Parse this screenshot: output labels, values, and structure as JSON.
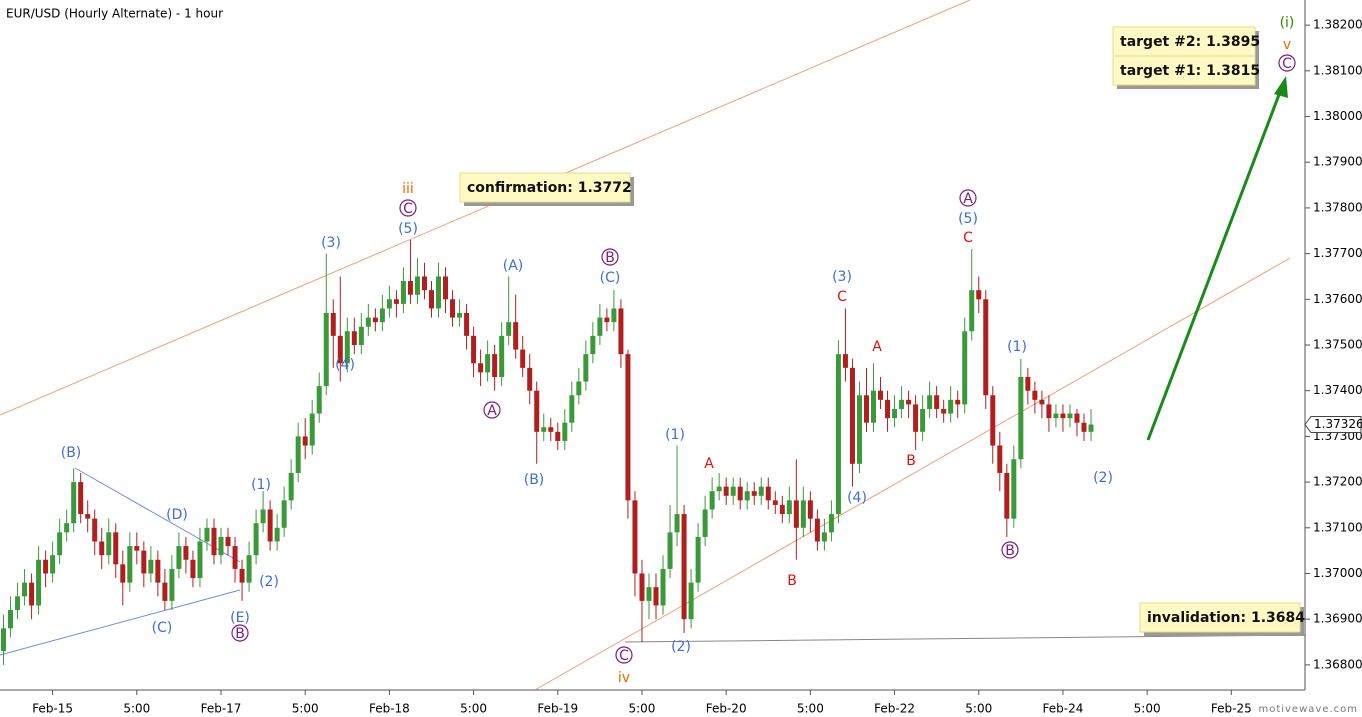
{
  "chart_data": {
    "type": "candlestick",
    "title": "EUR/USD (Hourly Alternate) - 1 hour",
    "watermark": "motivewave.com",
    "up_color": "#3a9a3a",
    "down_color": "#b01e1e",
    "xlim": [
      -0.5,
      185.5
    ],
    "xticks": [
      {
        "value": 7,
        "label": "Feb-15"
      },
      {
        "value": 19,
        "label": "5:00"
      },
      {
        "value": 31,
        "label": "Feb-17"
      },
      {
        "value": 43,
        "label": "5:00"
      },
      {
        "value": 55,
        "label": "Feb-18"
      },
      {
        "value": 67,
        "label": "5:00"
      },
      {
        "value": 79,
        "label": "Feb-19"
      },
      {
        "value": 91,
        "label": "5:00"
      },
      {
        "value": 103,
        "label": "Feb-20"
      },
      {
        "value": 115,
        "label": "5:00"
      },
      {
        "value": 127,
        "label": "Feb-22"
      },
      {
        "value": 139,
        "label": "5:00"
      },
      {
        "value": 151,
        "label": "Feb-24"
      },
      {
        "value": 163,
        "label": "5:00"
      },
      {
        "value": 175,
        "label": "Feb-25"
      }
    ],
    "ylim": [
      1.36745,
      1.38255
    ],
    "yticks": [
      {
        "value": 1.368,
        "label": "1.36800"
      },
      {
        "value": 1.369,
        "label": "1.36900"
      },
      {
        "value": 1.37,
        "label": "1.37000"
      },
      {
        "value": 1.371,
        "label": "1.37100"
      },
      {
        "value": 1.372,
        "label": "1.37200"
      },
      {
        "value": 1.373,
        "label": "1.37300"
      },
      {
        "value": 1.374,
        "label": "1.37400"
      },
      {
        "value": 1.375,
        "label": "1.37500"
      },
      {
        "value": 1.376,
        "label": "1.37600"
      },
      {
        "value": 1.377,
        "label": "1.37700"
      },
      {
        "value": 1.378,
        "label": "1.37800"
      },
      {
        "value": 1.379,
        "label": "1.37900"
      },
      {
        "value": 1.38,
        "label": "1.38000"
      },
      {
        "value": 1.381,
        "label": "1.38100"
      },
      {
        "value": 1.382,
        "label": "1.38200"
      }
    ],
    "last_price_label": "1.37326",
    "open": [
      1.3683,
      1.3688,
      1.3692,
      1.3695,
      1.3698,
      1.3693,
      1.3703,
      1.37,
      1.3704,
      1.3709,
      1.3711,
      1.372,
      1.3713,
      1.3712,
      1.3707,
      1.3704,
      1.3709,
      1.3702,
      1.3698,
      1.3706,
      1.3705,
      1.37,
      1.3703,
      1.3698,
      1.3694,
      1.3701,
      1.3706,
      1.3703,
      1.3699,
      1.3707,
      1.371,
      1.3704,
      1.3708,
      1.3706,
      1.3701,
      1.3698,
      1.3704,
      1.3711,
      1.3714,
      1.3707,
      1.371,
      1.3716,
      1.3722,
      1.373,
      1.3728,
      1.3735,
      1.3741,
      1.3757,
      1.3752,
      1.3746,
      1.3753,
      1.375,
      1.3754,
      1.3756,
      1.3755,
      1.3758,
      1.376,
      1.3759,
      1.3764,
      1.3761,
      1.3765,
      1.3762,
      1.3758,
      1.3765,
      1.376,
      1.3756,
      1.3757,
      1.3752,
      1.3746,
      1.3744,
      1.3748,
      1.3743,
      1.3752,
      1.3755,
      1.3749,
      1.3745,
      1.374,
      1.3731,
      1.3732,
      1.3731,
      1.3729,
      1.3733,
      1.3739,
      1.3742,
      1.3748,
      1.3752,
      1.3756,
      1.3755,
      1.3758,
      1.3748,
      1.3716,
      1.37,
      1.3694,
      1.3697,
      1.3693,
      1.3701,
      1.3709,
      1.3713,
      1.369,
      1.3698,
      1.3708,
      1.3714,
      1.3718,
      1.3719,
      1.3717,
      1.3719,
      1.3716,
      1.3718,
      1.3717,
      1.3719,
      1.3716,
      1.3715,
      1.3713,
      1.3716,
      1.371,
      1.3716,
      1.3712,
      1.3707,
      1.3709,
      1.3713,
      1.3748,
      1.3745,
      1.3724,
      1.3739,
      1.3733,
      1.374,
      1.3738,
      1.3734,
      1.3736,
      1.3738,
      1.3737,
      1.3731,
      1.3736,
      1.3739,
      1.3736,
      1.3735,
      1.3738,
      1.3737,
      1.3753,
      1.3762,
      1.376,
      1.3739,
      1.3728,
      1.3722,
      1.3712,
      1.3725,
      1.3743,
      1.374,
      1.3738,
      1.3737,
      1.3734,
      1.3735,
      1.3734,
      1.3735,
      1.3733,
      1.3731
    ],
    "high": [
      1.3691,
      1.3695,
      1.3698,
      1.3701,
      1.37,
      1.3706,
      1.3705,
      1.3707,
      1.3712,
      1.3714,
      1.3723,
      1.3722,
      1.3716,
      1.3714,
      1.371,
      1.3712,
      1.3711,
      1.3705,
      1.3709,
      1.3709,
      1.3707,
      1.3706,
      1.3705,
      1.3701,
      1.3704,
      1.3709,
      1.3708,
      1.3705,
      1.371,
      1.3712,
      1.3712,
      1.371,
      1.371,
      1.3708,
      1.3703,
      1.3707,
      1.3714,
      1.3718,
      1.3716,
      1.3713,
      1.3719,
      1.3725,
      1.3733,
      1.3734,
      1.3738,
      1.3744,
      1.377,
      1.376,
      1.3765,
      1.3756,
      1.3756,
      1.3757,
      1.3759,
      1.3758,
      1.3761,
      1.3763,
      1.3762,
      1.3767,
      1.3773,
      1.3769,
      1.3768,
      1.3764,
      1.3768,
      1.3767,
      1.3762,
      1.376,
      1.3759,
      1.3754,
      1.3749,
      1.3751,
      1.375,
      1.3755,
      1.3765,
      1.3761,
      1.3752,
      1.3748,
      1.3742,
      1.3735,
      1.3734,
      1.3733,
      1.3736,
      1.3742,
      1.3745,
      1.3751,
      1.3755,
      1.3759,
      1.3758,
      1.3762,
      1.376,
      1.3749,
      1.3718,
      1.3703,
      1.37,
      1.37,
      1.3704,
      1.3715,
      1.3728,
      1.3715,
      1.3701,
      1.3711,
      1.3717,
      1.3721,
      1.3722,
      1.3721,
      1.3721,
      1.3721,
      1.372,
      1.372,
      1.3721,
      1.3721,
      1.3718,
      1.3717,
      1.3719,
      1.3725,
      1.3719,
      1.3718,
      1.3714,
      1.3712,
      1.3716,
      1.3751,
      1.3758,
      1.3747,
      1.3742,
      1.3745,
      1.3746,
      1.3743,
      1.374,
      1.3739,
      1.3741,
      1.374,
      1.3739,
      1.3739,
      1.3742,
      1.3741,
      1.3738,
      1.3741,
      1.374,
      1.3756,
      1.3771,
      1.3765,
      1.3762,
      1.3741,
      1.3731,
      1.3724,
      1.3728,
      1.3747,
      1.3745,
      1.3742,
      1.374,
      1.3739,
      1.3737,
      1.3737,
      1.3737,
      1.3736,
      1.3735,
      1.3736
    ],
    "low": [
      1.368,
      1.3686,
      1.369,
      1.3693,
      1.369,
      1.3691,
      1.3697,
      1.3698,
      1.3702,
      1.3707,
      1.3709,
      1.3711,
      1.3709,
      1.3704,
      1.3701,
      1.3702,
      1.3699,
      1.3693,
      1.3696,
      1.3702,
      1.3697,
      1.3698,
      1.3695,
      1.3692,
      1.3692,
      1.3699,
      1.37,
      1.3697,
      1.3697,
      1.3705,
      1.3702,
      1.3702,
      1.3704,
      1.3698,
      1.3694,
      1.3696,
      1.3702,
      1.3709,
      1.3705,
      1.3705,
      1.3708,
      1.3714,
      1.372,
      1.3725,
      1.3726,
      1.3733,
      1.3739,
      1.3745,
      1.3742,
      1.3744,
      1.3748,
      1.3748,
      1.3752,
      1.3753,
      1.3753,
      1.3756,
      1.3756,
      1.3757,
      1.3759,
      1.3759,
      1.376,
      1.3756,
      1.3756,
      1.3757,
      1.3754,
      1.3754,
      1.3749,
      1.3743,
      1.3741,
      1.3742,
      1.374,
      1.3741,
      1.375,
      1.3747,
      1.3743,
      1.3737,
      1.3724,
      1.3729,
      1.3729,
      1.3727,
      1.3727,
      1.3731,
      1.3737,
      1.374,
      1.3746,
      1.375,
      1.3753,
      1.3753,
      1.3745,
      1.3712,
      1.3695,
      1.3685,
      1.369,
      1.369,
      1.3691,
      1.3699,
      1.3706,
      1.3687,
      1.3688,
      1.3696,
      1.3706,
      1.3712,
      1.3716,
      1.3715,
      1.3715,
      1.3714,
      1.3714,
      1.3715,
      1.3715,
      1.3714,
      1.3713,
      1.3711,
      1.3711,
      1.3703,
      1.3708,
      1.3709,
      1.3705,
      1.3705,
      1.3707,
      1.3711,
      1.3742,
      1.3719,
      1.3722,
      1.3731,
      1.3731,
      1.3736,
      1.3731,
      1.3732,
      1.3734,
      1.3734,
      1.3727,
      1.3729,
      1.3734,
      1.3734,
      1.3733,
      1.3733,
      1.3734,
      1.3735,
      1.3751,
      1.3757,
      1.3736,
      1.3724,
      1.3718,
      1.3708,
      1.371,
      1.3723,
      1.3737,
      1.3735,
      1.3734,
      1.3731,
      1.3732,
      1.3731,
      1.3732,
      1.373,
      1.3729,
      1.3729
    ],
    "close": [
      1.3688,
      1.3692,
      1.3695,
      1.3698,
      1.3693,
      1.3703,
      1.37,
      1.3704,
      1.3709,
      1.3711,
      1.372,
      1.3713,
      1.3712,
      1.3707,
      1.3704,
      1.3709,
      1.3702,
      1.3698,
      1.3706,
      1.3705,
      1.37,
      1.3703,
      1.3698,
      1.3694,
      1.3701,
      1.3706,
      1.3703,
      1.3699,
      1.3707,
      1.371,
      1.3704,
      1.3708,
      1.3706,
      1.3701,
      1.3698,
      1.3704,
      1.3711,
      1.3714,
      1.3707,
      1.371,
      1.3716,
      1.3722,
      1.373,
      1.3728,
      1.3735,
      1.3741,
      1.3757,
      1.3752,
      1.3746,
      1.3753,
      1.375,
      1.3754,
      1.3756,
      1.3755,
      1.3758,
      1.376,
      1.3759,
      1.3764,
      1.3761,
      1.3765,
      1.3762,
      1.3758,
      1.3765,
      1.376,
      1.3756,
      1.3757,
      1.3752,
      1.3746,
      1.3744,
      1.3748,
      1.3743,
      1.3752,
      1.3755,
      1.3749,
      1.3745,
      1.374,
      1.3731,
      1.3732,
      1.3731,
      1.3729,
      1.3733,
      1.3739,
      1.3742,
      1.3748,
      1.3752,
      1.3756,
      1.3755,
      1.3758,
      1.3748,
      1.3716,
      1.37,
      1.3694,
      1.3697,
      1.3693,
      1.3701,
      1.3709,
      1.3713,
      1.369,
      1.3698,
      1.3708,
      1.3714,
      1.3718,
      1.3719,
      1.3717,
      1.3719,
      1.3716,
      1.3718,
      1.3717,
      1.3719,
      1.3716,
      1.3715,
      1.3713,
      1.3716,
      1.371,
      1.3716,
      1.3712,
      1.3707,
      1.3709,
      1.3713,
      1.3748,
      1.3745,
      1.3724,
      1.3739,
      1.3733,
      1.374,
      1.3738,
      1.3734,
      1.3736,
      1.3738,
      1.3737,
      1.3731,
      1.3736,
      1.3739,
      1.3736,
      1.3735,
      1.3738,
      1.3737,
      1.3753,
      1.3762,
      1.376,
      1.3739,
      1.3728,
      1.3722,
      1.3712,
      1.3725,
      1.3743,
      1.374,
      1.3738,
      1.3737,
      1.3734,
      1.3735,
      1.3734,
      1.3735,
      1.3733,
      1.3731,
      1.37326
    ],
    "annotations": [
      {
        "text": "(B)",
        "color": "#3b6fd4"
      },
      {
        "text": "(C)",
        "color": "#3b6fd4"
      },
      {
        "text": "(D)",
        "color": "#3b6fd4"
      },
      {
        "text": "(E)",
        "color": "#3b6fd4"
      },
      {
        "text": "B",
        "color": "#7b1f7b",
        "circled": true
      },
      {
        "text": "(1)",
        "color": "#3b6fd4"
      },
      {
        "text": "(2)",
        "color": "#3b6fd4"
      },
      {
        "text": "(3)",
        "color": "#3b6fd4"
      },
      {
        "text": "(4)",
        "color": "#3b6fd4"
      },
      {
        "text": "(5)",
        "color": "#3b6fd4"
      },
      {
        "text": "C",
        "color": "#7b1f7b",
        "circled": true
      },
      {
        "text": "iii",
        "color": "#e86a00"
      },
      {
        "text": "A",
        "color": "#7b1f7b",
        "circled": true
      },
      {
        "text": "(A)",
        "color": "#3b6fd4"
      },
      {
        "text": "(B)",
        "color": "#3b6fd4"
      },
      {
        "text": "(C)",
        "color": "#3b6fd4"
      },
      {
        "text": "B",
        "color": "#7b1f7b",
        "circled": true
      },
      {
        "text": "C",
        "color": "#7b1f7b",
        "circled": true
      },
      {
        "text": "iv",
        "color": "#e86a00"
      },
      {
        "text": "(1)",
        "color": "#3b6fd4"
      },
      {
        "text": "(2)",
        "color": "#3b6fd4"
      },
      {
        "text": "A",
        "color": "#e01010"
      },
      {
        "text": "B",
        "color": "#e01010"
      },
      {
        "text": "(3)",
        "color": "#3b6fd4"
      },
      {
        "text": "C",
        "color": "#e01010"
      },
      {
        "text": "(4)",
        "color": "#3b6fd4"
      },
      {
        "text": "A",
        "color": "#e01010"
      },
      {
        "text": "B",
        "color": "#e01010"
      },
      {
        "text": "A",
        "color": "#7b1f7b",
        "circled": true
      },
      {
        "text": "(5)",
        "color": "#3b6fd4"
      },
      {
        "text": "C",
        "color": "#e01010"
      },
      {
        "text": "(1)",
        "color": "#3b6fd4"
      },
      {
        "text": "B",
        "color": "#7b1f7b",
        "circled": true
      },
      {
        "text": "(2)",
        "color": "#3b6fd4"
      },
      {
        "text": "(i)",
        "color": "#2e8b00"
      },
      {
        "text": "v",
        "color": "#e86a00"
      },
      {
        "text": "C",
        "color": "#7b1f7b",
        "circled": true
      }
    ],
    "boxes": [
      "confirmation:  1.3772",
      "target #2:  1.3895",
      "target #1:  1.3815",
      "invalidation:  1.3684"
    ]
  }
}
